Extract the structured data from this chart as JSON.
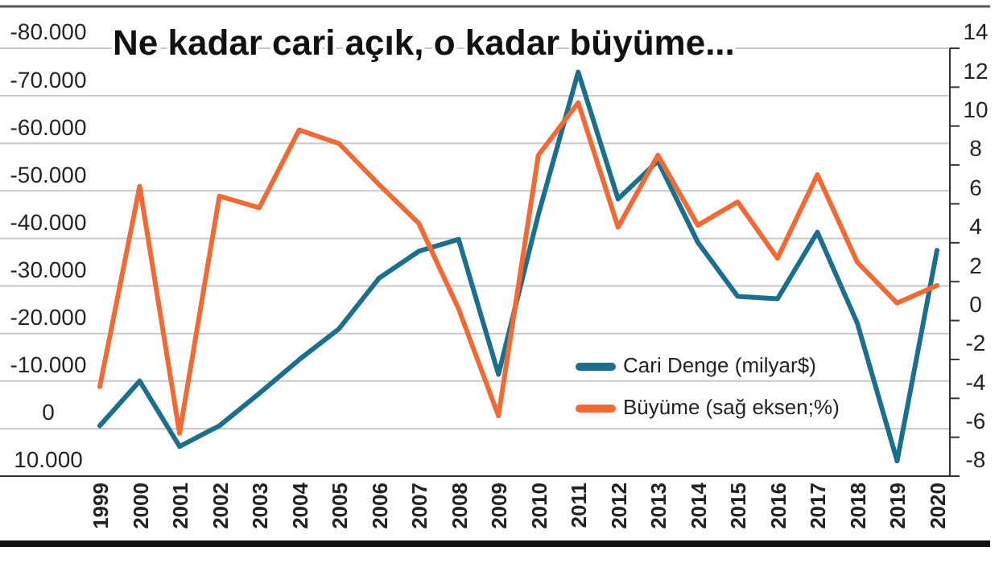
{
  "chart_data": {
    "type": "line",
    "title": "Ne kadar cari açık, o kadar büyüme...",
    "categories": [
      "1999",
      "2000",
      "2001",
      "2002",
      "2003",
      "2004",
      "2005",
      "2006",
      "2007",
      "2008",
      "2009",
      "2010",
      "2011",
      "2012",
      "2013",
      "2014",
      "2015",
      "2016",
      "2017",
      "2018",
      "2019",
      "2020"
    ],
    "series": [
      {
        "name": "Cari Denge (milyar$)",
        "color": "#1b6f8c",
        "values": [
          -600,
          -10000,
          3750,
          -600,
          -7400,
          -14500,
          -21000,
          -31600,
          -37300,
          -39800,
          -11400,
          -45000,
          -75000,
          -48300,
          -56300,
          -39200,
          -27800,
          -27300,
          -41300,
          -22200,
          6800,
          -37500
        ]
      },
      {
        "name": "Büyüme (sağ eksen;%)",
        "color": "#f06a35",
        "axis": "y2",
        "values": [
          -3.4,
          6.9,
          -5.8,
          6.4,
          5.8,
          9.8,
          9.1,
          7.0,
          5.0,
          0.6,
          -4.9,
          8.5,
          11.2,
          4.8,
          8.5,
          4.9,
          6.1,
          3.2,
          7.5,
          3.0,
          0.9,
          1.8
        ]
      }
    ],
    "ylim": [
      10000,
      -80000
    ],
    "yticks": [
      {
        "value": -80000,
        "label": "-80.000"
      },
      {
        "value": -70000,
        "label": "-70.000"
      },
      {
        "value": -60000,
        "label": "-60.000"
      },
      {
        "value": -50000,
        "label": "-50.000"
      },
      {
        "value": -40000,
        "label": "-40.000"
      },
      {
        "value": -30000,
        "label": "-30.000"
      },
      {
        "value": -20000,
        "label": "-20.000"
      },
      {
        "value": -10000,
        "label": "-10.000"
      },
      0,
      {
        "value": 10000,
        "label": "10.000"
      }
    ],
    "y2lim": [
      -8,
      14
    ],
    "y2ticks": [
      14,
      12,
      10,
      8,
      6,
      4,
      2,
      0,
      -2,
      -4,
      -6,
      -8
    ],
    "grid": "y",
    "legend": "bottom right",
    "line_style": "solid"
  }
}
